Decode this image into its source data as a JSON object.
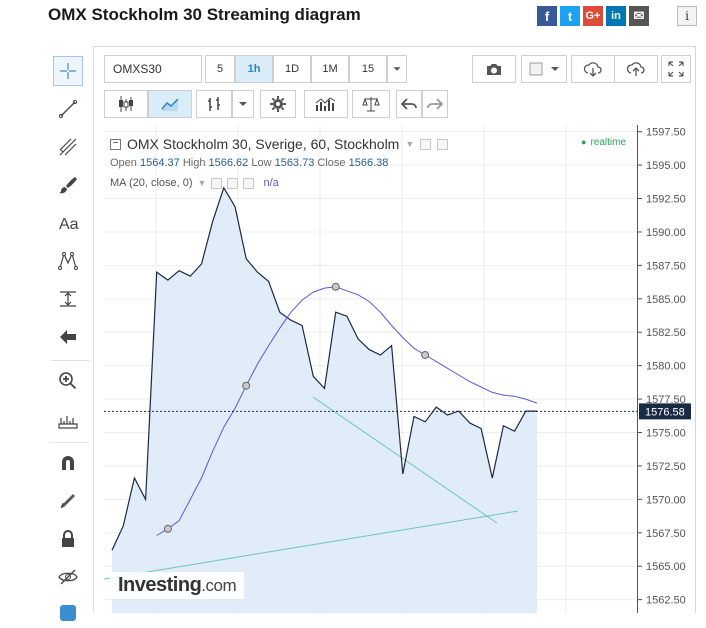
{
  "page_title": "OMX Stockholm 30 Streaming diagram",
  "share": {
    "fb": "f",
    "tw": "t",
    "gp": "G+",
    "li": "in",
    "mail": "✉",
    "info": "i"
  },
  "toolbar": {
    "symbol": "OMXS30",
    "intervals": [
      "5",
      "1h",
      "1D",
      "1M",
      "15"
    ],
    "selected_interval": "1h"
  },
  "legend": {
    "title": "OMX Stockholm 30, Sverige, 60, Stockholm",
    "open_label": "Open",
    "open": "1564.37",
    "high_label": "High",
    "high": "1566.62",
    "low_label": "Low",
    "low": "1563.73",
    "close_label": "Close",
    "close": "1566.38",
    "ma": "MA (20, close, 0)",
    "ma_value": "n/a",
    "realtime": "realtime"
  },
  "logo": {
    "main": "Investing",
    "suffix": ".com"
  },
  "colors": {
    "price_line": "#1b2a44",
    "area_fill": "#dbe9f7",
    "ma_line": "#5a5ad6",
    "trend_line": "#6cc6b8",
    "last_price_bg": "#1b2a44"
  },
  "chart_data": {
    "type": "area",
    "ylim": [
      1561.5,
      1598.0
    ],
    "y_ticks": [
      1597.5,
      1595.0,
      1592.5,
      1590.0,
      1587.5,
      1585.0,
      1582.5,
      1580.0,
      1577.5,
      1575.0,
      1572.5,
      1570.0,
      1567.5,
      1565.0,
      1562.5
    ],
    "last_price": "1576.58",
    "series": [
      {
        "values": [
          1566.2,
          1568.0,
          1571.6,
          1570.0,
          1587.0,
          1586.4,
          1587.1,
          1586.7,
          1587.6,
          1590.8,
          1593.3,
          1591.9,
          1588.0,
          1587.0,
          1586.3,
          1584.0,
          1583.4,
          1583.0,
          1579.2,
          1578.3,
          1584.0,
          1583.7,
          1582.0,
          1581.2,
          1580.8,
          1581.5,
          1571.9,
          1576.2,
          1575.8,
          1576.9,
          1576.3,
          1576.6,
          1575.7,
          1575.3,
          1571.6,
          1575.5,
          1575.1,
          1576.6,
          1576.6
        ]
      },
      {
        "values": [
          null,
          null,
          null,
          null,
          1567.3,
          1567.8,
          1568.4,
          1570.0,
          1571.6,
          1573.6,
          1575.4,
          1576.8,
          1578.5,
          1580.1,
          1581.5,
          1582.8,
          1584.0,
          1584.9,
          1585.5,
          1585.8,
          1585.9,
          1585.6,
          1585.3,
          1584.8,
          1584.0,
          1583.0,
          1582.1,
          1581.3,
          1580.8,
          1580.3,
          1579.8,
          1579.3,
          1578.8,
          1578.4,
          1578.0,
          1577.8,
          1577.7,
          1577.5,
          1577.2
        ]
      }
    ]
  }
}
